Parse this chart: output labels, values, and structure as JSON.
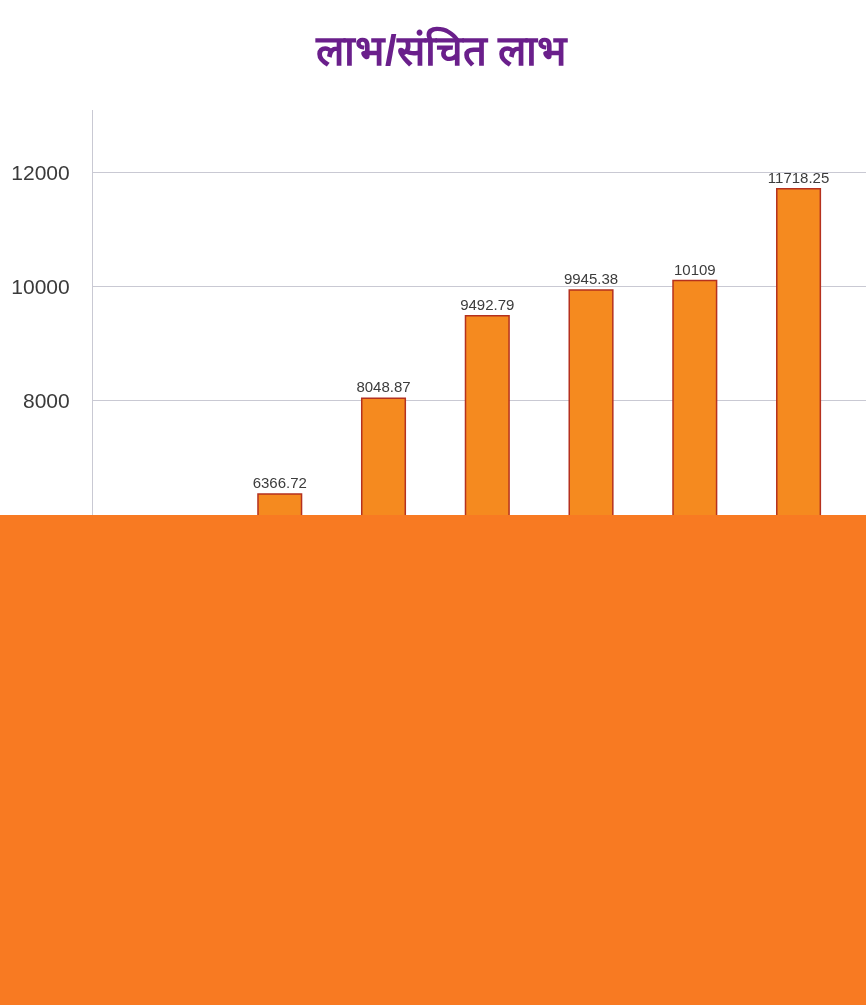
{
  "chart_data": {
    "type": "bar",
    "title": "लाभ/संचित लाभ",
    "categories": [
      null,
      null,
      null,
      null,
      null,
      null,
      null
    ],
    "values": [
      null,
      6366.72,
      8048.87,
      9492.79,
      9945.38,
      10109,
      11718.25
    ],
    "color": "#f58a1f",
    "ylim": [
      6000,
      13100
    ],
    "yticks": [
      8000,
      10000,
      12000
    ],
    "grid": "y",
    "data_labels": true,
    "tick_labels": "y"
  }
}
